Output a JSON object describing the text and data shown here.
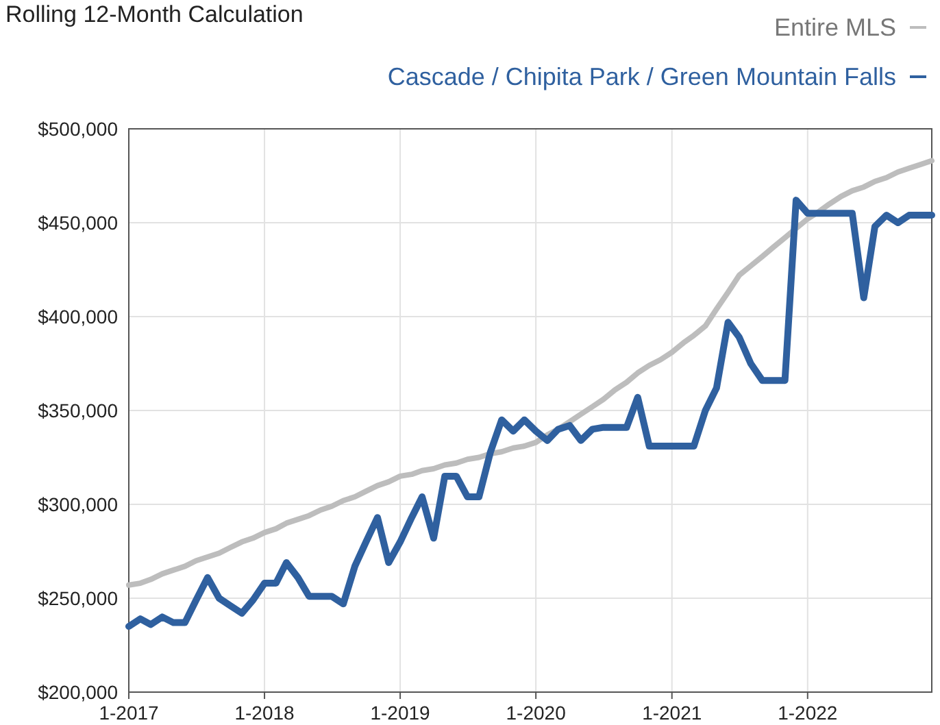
{
  "chart_data": {
    "type": "line",
    "title": "Rolling 12-Month Calculation",
    "x": [
      "2017-01",
      "2017-02",
      "2017-03",
      "2017-04",
      "2017-05",
      "2017-06",
      "2017-07",
      "2017-08",
      "2017-09",
      "2017-10",
      "2017-11",
      "2017-12",
      "2018-01",
      "2018-02",
      "2018-03",
      "2018-04",
      "2018-05",
      "2018-06",
      "2018-07",
      "2018-08",
      "2018-09",
      "2018-10",
      "2018-11",
      "2018-12",
      "2019-01",
      "2019-02",
      "2019-03",
      "2019-04",
      "2019-05",
      "2019-06",
      "2019-07",
      "2019-08",
      "2019-09",
      "2019-10",
      "2019-11",
      "2019-12",
      "2020-01",
      "2020-02",
      "2020-03",
      "2020-04",
      "2020-05",
      "2020-06",
      "2020-07",
      "2020-08",
      "2020-09",
      "2020-10",
      "2020-11",
      "2020-12",
      "2021-01",
      "2021-02",
      "2021-03",
      "2021-04",
      "2021-05",
      "2021-06",
      "2021-07",
      "2021-08",
      "2021-09",
      "2021-10",
      "2021-11",
      "2021-12",
      "2022-01",
      "2022-02",
      "2022-03",
      "2022-04",
      "2022-05",
      "2022-06",
      "2022-07",
      "2022-08",
      "2022-09",
      "2022-10",
      "2022-11",
      "2022-12"
    ],
    "series": [
      {
        "name": "Entire MLS",
        "color": "#bdbdbd",
        "values": [
          257000,
          258000,
          260000,
          263000,
          265000,
          267000,
          270000,
          272000,
          274000,
          277000,
          280000,
          282000,
          285000,
          287000,
          290000,
          292000,
          294000,
          297000,
          299000,
          302000,
          304000,
          307000,
          310000,
          312000,
          315000,
          316000,
          318000,
          319000,
          321000,
          322000,
          324000,
          325000,
          327000,
          328000,
          330000,
          331000,
          333000,
          337000,
          340000,
          344000,
          348000,
          352000,
          356000,
          361000,
          365000,
          370000,
          374000,
          377000,
          381000,
          386000,
          390000,
          395000,
          404000,
          413000,
          422000,
          427000,
          432000,
          437000,
          442000,
          447000,
          452000,
          456000,
          460000,
          464000,
          467000,
          469000,
          472000,
          474000,
          477000,
          479000,
          481000,
          483000
        ]
      },
      {
        "name": "Cascade / Chipita Park / Green Mountain Falls",
        "color": "#2f609f",
        "values": [
          235000,
          239000,
          236000,
          240000,
          237000,
          237000,
          249000,
          261000,
          250000,
          246000,
          242000,
          249000,
          258000,
          258000,
          269000,
          261000,
          251000,
          251000,
          251000,
          247000,
          267000,
          280000,
          293000,
          269000,
          280000,
          293000,
          304000,
          282000,
          315000,
          315000,
          304000,
          304000,
          328000,
          345000,
          339000,
          345000,
          339000,
          334000,
          340000,
          342000,
          334000,
          340000,
          341000,
          341000,
          341000,
          357000,
          331000,
          331000,
          331000,
          331000,
          331000,
          350000,
          362000,
          397000,
          389000,
          375000,
          366000,
          366000,
          366000,
          462000,
          455000,
          455000,
          455000,
          455000,
          455000,
          410000,
          448000,
          454000,
          450000,
          454000,
          454000,
          454000
        ]
      }
    ],
    "xlim": [
      "2017-01",
      "2022-12"
    ],
    "xticks": [
      {
        "value": "2017-01",
        "label": "1-2017"
      },
      {
        "value": "2018-01",
        "label": "1-2018"
      },
      {
        "value": "2019-01",
        "label": "1-2019"
      },
      {
        "value": "2020-01",
        "label": "1-2020"
      },
      {
        "value": "2021-01",
        "label": "1-2021"
      },
      {
        "value": "2022-01",
        "label": "1-2022"
      }
    ],
    "ylim": [
      200000,
      500000
    ],
    "yticks": [
      {
        "value": 200000,
        "label": "$200,000"
      },
      {
        "value": 250000,
        "label": "$250,000"
      },
      {
        "value": 300000,
        "label": "$300,000"
      },
      {
        "value": 350000,
        "label": "$350,000"
      },
      {
        "value": 400000,
        "label": "$400,000"
      },
      {
        "value": 450000,
        "label": "$450,000"
      },
      {
        "value": 500000,
        "label": "$500,000"
      }
    ],
    "grid": true,
    "legend": "top right",
    "marker": "none",
    "line_style": "solid"
  }
}
